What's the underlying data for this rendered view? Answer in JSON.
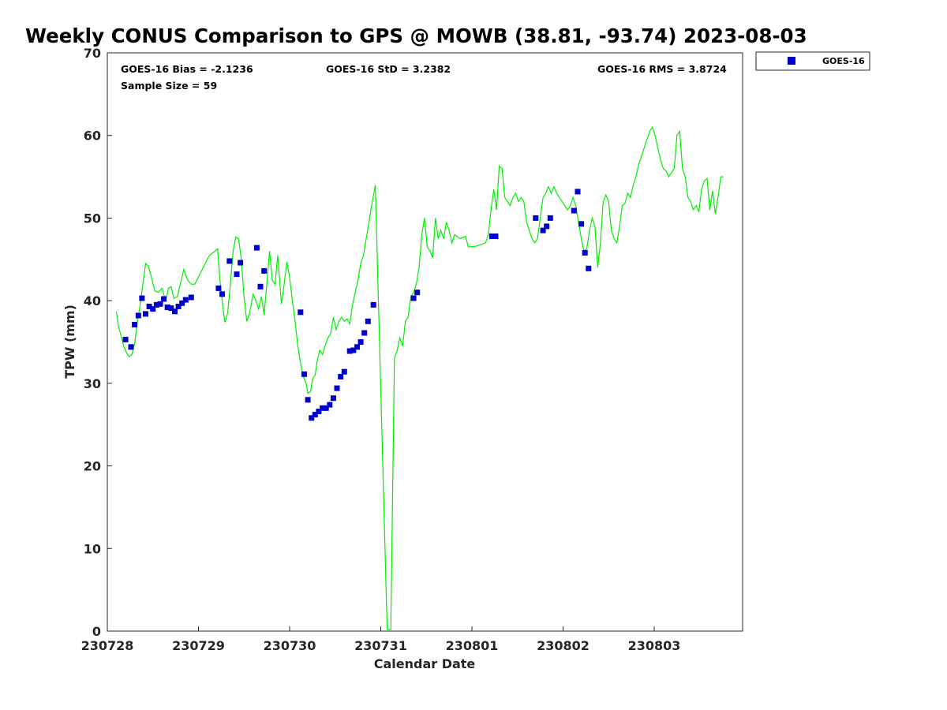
{
  "chart_data": {
    "type": "scatter",
    "title": "Weekly CONUS Comparison to GPS @ MOWB (38.81, -93.74) 2023-08-03",
    "xlabel": "Calendar Date",
    "ylabel": "TPW (mm)",
    "xlim": [
      0,
      6.97
    ],
    "ylim": [
      0,
      70
    ],
    "x_unit": "days since 230728",
    "x_ticks": [
      {
        "value": 0,
        "label": "230728"
      },
      {
        "value": 1,
        "label": "230729"
      },
      {
        "value": 2,
        "label": "230730"
      },
      {
        "value": 3,
        "label": "230731"
      },
      {
        "value": 4,
        "label": "230801"
      },
      {
        "value": 5,
        "label": "230802"
      },
      {
        "value": 6,
        "label": "230803"
      }
    ],
    "y_ticks": [
      {
        "value": 0,
        "label": "0"
      },
      {
        "value": 10,
        "label": "10"
      },
      {
        "value": 20,
        "label": "20"
      },
      {
        "value": 30,
        "label": "30"
      },
      {
        "value": 40,
        "label": "40"
      },
      {
        "value": 50,
        "label": "50"
      },
      {
        "value": 60,
        "label": "60"
      },
      {
        "value": 70,
        "label": "70"
      }
    ],
    "stats": {
      "bias": "GOES-16 Bias = -2.1236",
      "std": "GOES-16 StD = 3.2382",
      "rms": "GOES-16 RMS = 3.8724",
      "sample_size": "Sample Size = 59"
    },
    "legend": {
      "position": "top-right-outside",
      "entries": [
        {
          "name": "GOES-16",
          "color": "#0000cc",
          "marker": "square"
        }
      ]
    },
    "grid": false,
    "series": [
      {
        "name": "GPS",
        "kind": "line",
        "color": "#00ee00",
        "points": [
          [
            0.1,
            38.7
          ],
          [
            0.12,
            37.0
          ],
          [
            0.15,
            35.8
          ],
          [
            0.18,
            34.5
          ],
          [
            0.21,
            33.7
          ],
          [
            0.24,
            33.2
          ],
          [
            0.27,
            33.5
          ],
          [
            0.3,
            34.8
          ],
          [
            0.33,
            37.5
          ],
          [
            0.36,
            39.5
          ],
          [
            0.39,
            42.0
          ],
          [
            0.42,
            44.5
          ],
          [
            0.45,
            44.2
          ],
          [
            0.48,
            43.0
          ],
          [
            0.52,
            41.2
          ],
          [
            0.56,
            41.0
          ],
          [
            0.6,
            41.5
          ],
          [
            0.64,
            40.0
          ],
          [
            0.67,
            41.5
          ],
          [
            0.7,
            41.7
          ],
          [
            0.73,
            40.3
          ],
          [
            0.77,
            40.5
          ],
          [
            0.8,
            42.0
          ],
          [
            0.84,
            43.8
          ],
          [
            0.88,
            42.5
          ],
          [
            0.92,
            42.0
          ],
          [
            0.96,
            42.0
          ],
          [
            1.05,
            44.0
          ],
          [
            1.12,
            45.5
          ],
          [
            1.18,
            46.0
          ],
          [
            1.21,
            46.3
          ],
          [
            1.24,
            42.0
          ],
          [
            1.27,
            39.0
          ],
          [
            1.29,
            37.4
          ],
          [
            1.32,
            38.5
          ],
          [
            1.35,
            42.0
          ],
          [
            1.38,
            46.0
          ],
          [
            1.41,
            47.7
          ],
          [
            1.44,
            47.5
          ],
          [
            1.47,
            45.0
          ],
          [
            1.5,
            40.5
          ],
          [
            1.53,
            37.5
          ],
          [
            1.56,
            38.5
          ],
          [
            1.6,
            40.8
          ],
          [
            1.63,
            40.0
          ],
          [
            1.66,
            39.0
          ],
          [
            1.69,
            40.5
          ],
          [
            1.72,
            38.3
          ],
          [
            1.75,
            42.0
          ],
          [
            1.78,
            46.0
          ],
          [
            1.81,
            42.5
          ],
          [
            1.84,
            42.0
          ],
          [
            1.87,
            45.5
          ],
          [
            1.91,
            39.6
          ],
          [
            1.94,
            42.0
          ],
          [
            1.97,
            44.7
          ],
          [
            2.0,
            42.8
          ],
          [
            2.03,
            40.0
          ],
          [
            2.06,
            37.5
          ],
          [
            2.09,
            34.5
          ],
          [
            2.12,
            32.5
          ],
          [
            2.15,
            30.8
          ],
          [
            2.18,
            30.0
          ],
          [
            2.2,
            28.8
          ],
          [
            2.23,
            29.0
          ],
          [
            2.25,
            30.5
          ],
          [
            2.28,
            31.0
          ],
          [
            2.3,
            32.5
          ],
          [
            2.33,
            34.0
          ],
          [
            2.36,
            33.5
          ],
          [
            2.39,
            34.5
          ],
          [
            2.42,
            35.5
          ],
          [
            2.45,
            36.0
          ],
          [
            2.48,
            38.0
          ],
          [
            2.51,
            36.5
          ],
          [
            2.54,
            37.5
          ],
          [
            2.57,
            38.0
          ],
          [
            2.6,
            37.5
          ],
          [
            2.63,
            37.8
          ],
          [
            2.66,
            37.2
          ],
          [
            2.69,
            39.5
          ],
          [
            2.72,
            41.0
          ],
          [
            2.75,
            42.5
          ],
          [
            2.78,
            44.5
          ],
          [
            2.81,
            45.5
          ],
          [
            2.84,
            47.5
          ],
          [
            2.87,
            49.5
          ],
          [
            2.9,
            51.5
          ],
          [
            2.94,
            54.0
          ],
          [
            3.07,
            0.2
          ],
          [
            3.11,
            0.2
          ],
          [
            3.15,
            33.0
          ],
          [
            3.18,
            34.0
          ],
          [
            3.21,
            35.5
          ],
          [
            3.24,
            34.5
          ],
          [
            3.27,
            37.5
          ],
          [
            3.3,
            38.0
          ],
          [
            3.33,
            40.5
          ],
          [
            3.36,
            41.0
          ],
          [
            3.39,
            42.0
          ],
          [
            3.42,
            44.0
          ],
          [
            3.45,
            48.0
          ],
          [
            3.48,
            50.0
          ],
          [
            3.51,
            46.5
          ],
          [
            3.54,
            46.0
          ],
          [
            3.57,
            45.2
          ],
          [
            3.6,
            50.0
          ],
          [
            3.63,
            47.5
          ],
          [
            3.66,
            48.5
          ],
          [
            3.69,
            47.5
          ],
          [
            3.72,
            49.5
          ],
          [
            3.75,
            48.5
          ],
          [
            3.78,
            47.0
          ],
          [
            3.81,
            48.0
          ],
          [
            3.87,
            47.5
          ],
          [
            3.93,
            47.8
          ],
          [
            3.96,
            46.5
          ],
          [
            4.05,
            46.6
          ],
          [
            4.1,
            46.8
          ],
          [
            4.15,
            47.0
          ],
          [
            4.18,
            48.0
          ],
          [
            4.21,
            51.0
          ],
          [
            4.24,
            53.5
          ],
          [
            4.27,
            51.0
          ],
          [
            4.3,
            56.3
          ],
          [
            4.33,
            56.0
          ],
          [
            4.36,
            52.5
          ],
          [
            4.39,
            52.0
          ],
          [
            4.42,
            51.5
          ],
          [
            4.45,
            52.5
          ],
          [
            4.48,
            53.0
          ],
          [
            4.51,
            52.0
          ],
          [
            4.54,
            52.5
          ],
          [
            4.57,
            52.0
          ],
          [
            4.6,
            49.5
          ],
          [
            4.63,
            48.5
          ],
          [
            4.66,
            47.5
          ],
          [
            4.69,
            47.0
          ],
          [
            4.72,
            47.5
          ],
          [
            4.75,
            50.0
          ],
          [
            4.78,
            52.5
          ],
          [
            4.81,
            53.0
          ],
          [
            4.84,
            53.8
          ],
          [
            4.87,
            53.0
          ],
          [
            4.9,
            53.8
          ],
          [
            4.93,
            53.0
          ],
          [
            4.96,
            52.5
          ],
          [
            5.05,
            51.0
          ],
          [
            5.08,
            51.5
          ],
          [
            5.11,
            52.5
          ],
          [
            5.14,
            51.5
          ],
          [
            5.17,
            49.5
          ],
          [
            5.2,
            47.5
          ],
          [
            5.23,
            46.0
          ],
          [
            5.26,
            46.3
          ],
          [
            5.29,
            48.5
          ],
          [
            5.32,
            50.0
          ],
          [
            5.35,
            49.0
          ],
          [
            5.38,
            44.0
          ],
          [
            5.41,
            47.0
          ],
          [
            5.44,
            52.0
          ],
          [
            5.47,
            52.8
          ],
          [
            5.5,
            52.0
          ],
          [
            5.53,
            48.5
          ],
          [
            5.56,
            47.5
          ],
          [
            5.59,
            47.0
          ],
          [
            5.62,
            49.0
          ],
          [
            5.65,
            51.5
          ],
          [
            5.68,
            51.8
          ],
          [
            5.71,
            53.0
          ],
          [
            5.74,
            52.5
          ],
          [
            5.77,
            54.0
          ],
          [
            5.8,
            55.0
          ],
          [
            5.83,
            56.5
          ],
          [
            5.86,
            57.5
          ],
          [
            5.89,
            58.5
          ],
          [
            5.92,
            59.5
          ],
          [
            5.95,
            60.5
          ],
          [
            5.98,
            61.0
          ],
          [
            6.01,
            60.0
          ],
          [
            6.04,
            58.5
          ],
          [
            6.07,
            57.0
          ],
          [
            6.1,
            56.0
          ],
          [
            6.13,
            55.7
          ],
          [
            6.16,
            55.0
          ],
          [
            6.19,
            55.5
          ],
          [
            6.22,
            56.0
          ],
          [
            6.25,
            60.0
          ],
          [
            6.28,
            60.5
          ],
          [
            6.31,
            56.0
          ],
          [
            6.34,
            55.0
          ],
          [
            6.37,
            52.5
          ],
          [
            6.4,
            52.0
          ],
          [
            6.43,
            51.0
          ],
          [
            6.46,
            51.5
          ],
          [
            6.49,
            50.8
          ],
          [
            6.52,
            53.5
          ],
          [
            6.55,
            54.5
          ],
          [
            6.58,
            54.8
          ],
          [
            6.61,
            51.0
          ],
          [
            6.64,
            53.3
          ],
          [
            6.67,
            50.5
          ],
          [
            6.7,
            52.5
          ],
          [
            6.73,
            55.0
          ],
          [
            6.76,
            55.0
          ]
        ]
      },
      {
        "name": "GOES-16",
        "kind": "scatter",
        "color": "#0000cc",
        "points": [
          [
            0.2,
            35.3
          ],
          [
            0.26,
            34.4
          ],
          [
            0.3,
            37.1
          ],
          [
            0.34,
            38.2
          ],
          [
            0.38,
            40.3
          ],
          [
            0.42,
            38.4
          ],
          [
            0.46,
            39.3
          ],
          [
            0.5,
            39.0
          ],
          [
            0.54,
            39.5
          ],
          [
            0.58,
            39.6
          ],
          [
            0.62,
            40.2
          ],
          [
            0.66,
            39.2
          ],
          [
            0.7,
            39.1
          ],
          [
            0.74,
            38.7
          ],
          [
            0.78,
            39.3
          ],
          [
            0.82,
            39.7
          ],
          [
            0.86,
            40.1
          ],
          [
            0.92,
            40.4
          ],
          [
            1.22,
            41.5
          ],
          [
            1.26,
            40.8
          ],
          [
            1.34,
            44.8
          ],
          [
            1.42,
            43.2
          ],
          [
            1.46,
            44.6
          ],
          [
            1.64,
            46.4
          ],
          [
            1.68,
            41.7
          ],
          [
            1.72,
            43.6
          ],
          [
            2.12,
            38.6
          ],
          [
            2.16,
            31.1
          ],
          [
            2.2,
            28.0
          ],
          [
            2.24,
            25.8
          ],
          [
            2.28,
            26.2
          ],
          [
            2.32,
            26.6
          ],
          [
            2.36,
            27.0
          ],
          [
            2.4,
            27.0
          ],
          [
            2.44,
            27.4
          ],
          [
            2.48,
            28.2
          ],
          [
            2.52,
            29.4
          ],
          [
            2.56,
            30.8
          ],
          [
            2.6,
            31.4
          ],
          [
            2.66,
            33.9
          ],
          [
            2.7,
            34.0
          ],
          [
            2.74,
            34.4
          ],
          [
            2.78,
            35.0
          ],
          [
            2.82,
            36.1
          ],
          [
            2.86,
            37.5
          ],
          [
            2.92,
            39.5
          ],
          [
            3.36,
            40.3
          ],
          [
            3.4,
            41.0
          ],
          [
            4.22,
            47.8
          ],
          [
            4.26,
            47.8
          ],
          [
            4.7,
            50.0
          ],
          [
            4.78,
            48.5
          ],
          [
            4.82,
            49.0
          ],
          [
            4.86,
            50.0
          ],
          [
            5.12,
            50.9
          ],
          [
            5.16,
            53.2
          ],
          [
            5.2,
            49.3
          ],
          [
            5.24,
            45.8
          ],
          [
            5.28,
            43.9
          ]
        ]
      }
    ]
  }
}
